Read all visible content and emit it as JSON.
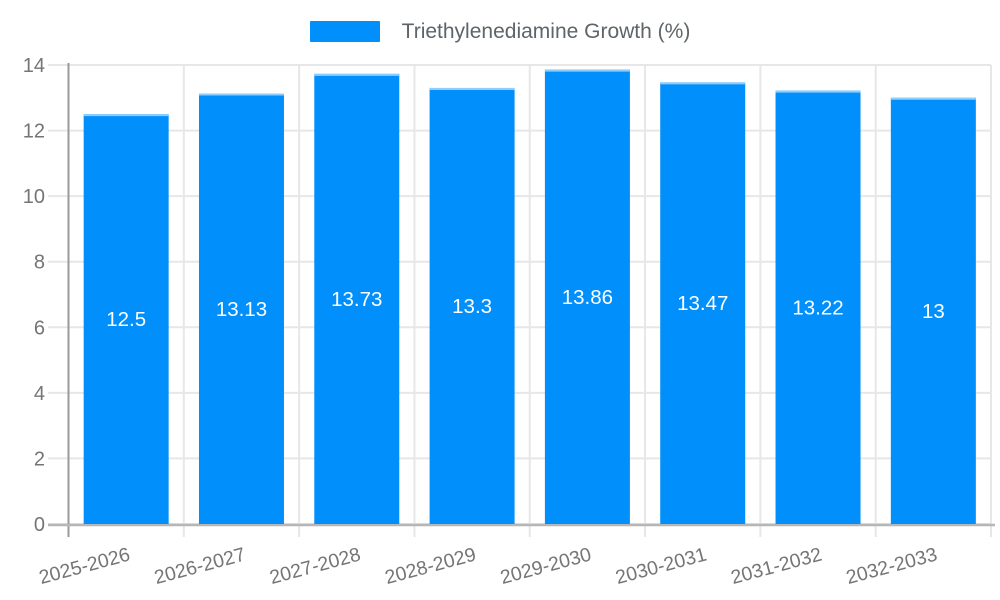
{
  "legend": {
    "label": "Triethylenediamine Growth (%)"
  },
  "colors": {
    "bar": "#008FFB",
    "bar_top_edge": "#8FCDFD",
    "grid": "#e7e7e7",
    "x_axis_line": "#b6b6b6",
    "y_axis_line": "#9a9a9a",
    "axis_label": "#757575",
    "legend_text": "#5f6468",
    "bar_label": "#ffffff",
    "background": "#ffffff"
  },
  "chart_data": {
    "type": "bar",
    "title": "Triethylenediamine Growth (%)",
    "categories": [
      "2025-2026",
      "2026-2027",
      "2027-2028",
      "2028-2029",
      "2029-2030",
      "2030-2031",
      "2031-2032",
      "2032-2033"
    ],
    "series": [
      {
        "name": "Triethylenediamine Growth (%)",
        "values": [
          12.5,
          13.13,
          13.73,
          13.3,
          13.86,
          13.47,
          13.22,
          13
        ]
      }
    ],
    "data_labels": [
      "12.5",
      "13.13",
      "13.73",
      "13.3",
      "13.86",
      "13.47",
      "13.22",
      "13"
    ],
    "xlabel": "",
    "ylabel": "",
    "ylim": [
      0,
      14
    ],
    "yticks": [
      0,
      2,
      4,
      6,
      8,
      10,
      12,
      14
    ],
    "grid": true,
    "legend_position": "top",
    "x_label_rotation_deg": -15,
    "bar_label_position": "middle"
  }
}
